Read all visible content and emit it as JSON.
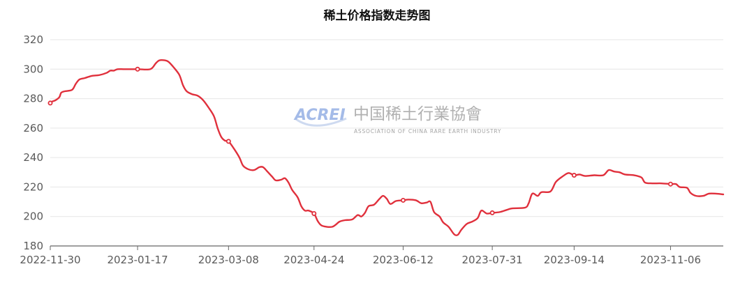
{
  "title": "稀土价格指数走势图",
  "watermark": {
    "logo_text": "ACREI",
    "name_cn": "中国稀土行業協會",
    "name_en": "ASSOCIATION OF CHINA RARE EARTH INDUSTRY"
  },
  "colors": {
    "line": "#e0303c",
    "grid": "#e6e6e6",
    "axis": "#666666",
    "tick_text": "#5a5a5a",
    "background": "#ffffff"
  },
  "chart_data": {
    "type": "line",
    "title": "稀土价格指数走势图",
    "xlabel": "",
    "ylabel": "",
    "grid": true,
    "ylim": [
      180,
      320
    ],
    "y_ticks": [
      180,
      200,
      220,
      240,
      260,
      280,
      300,
      320
    ],
    "x_ticks": [
      "2022-11-30",
      "2023-01-17",
      "2023-03-08",
      "2023-04-24",
      "2023-06-12",
      "2023-07-31",
      "2023-09-14",
      "2023-11-06"
    ],
    "x_range": [
      "2022-11-30",
      "2023-12-05"
    ],
    "series": [
      {
        "markers": [
          "2022-11-30",
          "2023-01-17",
          "2023-03-08",
          "2023-04-24",
          "2023-06-12",
          "2023-07-31",
          "2023-09-14",
          "2023-11-06"
        ],
        "points": [
          [
            "2022-11-30",
            277
          ],
          [
            "2022-12-01",
            278
          ],
          [
            "2022-12-03",
            279
          ],
          [
            "2022-12-05",
            281
          ],
          [
            "2022-12-06",
            284
          ],
          [
            "2022-12-08",
            285
          ],
          [
            "2022-12-12",
            286
          ],
          [
            "2022-12-14",
            290
          ],
          [
            "2022-12-16",
            293
          ],
          [
            "2022-12-19",
            294
          ],
          [
            "2022-12-23",
            295.5
          ],
          [
            "2022-12-27",
            296
          ],
          [
            "2022-12-31",
            297.5
          ],
          [
            "2023-01-02",
            299
          ],
          [
            "2023-01-04",
            299
          ],
          [
            "2023-01-06",
            300
          ],
          [
            "2023-01-10",
            300
          ],
          [
            "2023-01-17",
            300
          ],
          [
            "2023-01-24",
            300
          ],
          [
            "2023-01-27",
            304
          ],
          [
            "2023-01-29",
            306
          ],
          [
            "2023-02-01",
            306
          ],
          [
            "2023-02-03",
            305
          ],
          [
            "2023-02-06",
            301
          ],
          [
            "2023-02-09",
            296
          ],
          [
            "2023-02-11",
            289
          ],
          [
            "2023-02-13",
            285
          ],
          [
            "2023-02-16",
            283
          ],
          [
            "2023-02-19",
            282
          ],
          [
            "2023-02-22",
            279
          ],
          [
            "2023-02-25",
            274
          ],
          [
            "2023-02-28",
            268
          ],
          [
            "2023-03-02",
            260
          ],
          [
            "2023-03-04",
            254
          ],
          [
            "2023-03-06",
            251.5
          ],
          [
            "2023-03-08",
            251
          ],
          [
            "2023-03-11",
            246
          ],
          [
            "2023-03-14",
            240
          ],
          [
            "2023-03-16",
            234.5
          ],
          [
            "2023-03-19",
            232
          ],
          [
            "2023-03-22",
            231.5
          ],
          [
            "2023-03-25",
            233.5
          ],
          [
            "2023-03-27",
            233.5
          ],
          [
            "2023-03-29",
            231
          ],
          [
            "2023-04-01",
            227
          ],
          [
            "2023-04-03",
            224.5
          ],
          [
            "2023-04-06",
            225
          ],
          [
            "2023-04-08",
            226
          ],
          [
            "2023-04-10",
            223
          ],
          [
            "2023-04-12",
            218
          ],
          [
            "2023-04-15",
            213
          ],
          [
            "2023-04-17",
            207
          ],
          [
            "2023-04-19",
            204
          ],
          [
            "2023-04-21",
            204
          ],
          [
            "2023-04-24",
            202
          ],
          [
            "2023-04-26",
            197
          ],
          [
            "2023-04-28",
            194
          ],
          [
            "2023-05-01",
            193
          ],
          [
            "2023-05-04",
            193
          ],
          [
            "2023-05-06",
            194.5
          ],
          [
            "2023-05-08",
            196.5
          ],
          [
            "2023-05-11",
            197.5
          ],
          [
            "2023-05-15",
            198
          ],
          [
            "2023-05-18",
            201
          ],
          [
            "2023-05-20",
            200
          ],
          [
            "2023-05-22",
            202.5
          ],
          [
            "2023-05-24",
            207
          ],
          [
            "2023-05-27",
            208
          ],
          [
            "2023-05-30",
            212
          ],
          [
            "2023-06-01",
            214
          ],
          [
            "2023-06-03",
            212
          ],
          [
            "2023-06-05",
            208.5
          ],
          [
            "2023-06-08",
            210.5
          ],
          [
            "2023-06-12",
            211
          ],
          [
            "2023-06-15",
            211.5
          ],
          [
            "2023-06-19",
            211
          ],
          [
            "2023-06-22",
            209
          ],
          [
            "2023-06-25",
            209.5
          ],
          [
            "2023-06-27",
            210
          ],
          [
            "2023-06-29",
            203
          ],
          [
            "2023-07-02",
            200
          ],
          [
            "2023-07-04",
            196
          ],
          [
            "2023-07-07",
            193
          ],
          [
            "2023-07-10",
            188
          ],
          [
            "2023-07-12",
            187.5
          ],
          [
            "2023-07-14",
            191
          ],
          [
            "2023-07-17",
            195
          ],
          [
            "2023-07-20",
            196.5
          ],
          [
            "2023-07-23",
            199
          ],
          [
            "2023-07-25",
            204
          ],
          [
            "2023-07-28",
            202
          ],
          [
            "2023-07-31",
            202.5
          ],
          [
            "2023-08-04",
            203
          ],
          [
            "2023-08-08",
            204.5
          ],
          [
            "2023-08-11",
            205.5
          ],
          [
            "2023-08-18",
            206
          ],
          [
            "2023-08-20",
            209
          ],
          [
            "2023-08-22",
            215.5
          ],
          [
            "2023-08-25",
            214
          ],
          [
            "2023-08-27",
            216.5
          ],
          [
            "2023-09-01",
            217
          ],
          [
            "2023-09-04",
            223.5
          ],
          [
            "2023-09-08",
            227.5
          ],
          [
            "2023-09-11",
            229.5
          ],
          [
            "2023-09-14",
            228
          ],
          [
            "2023-09-17",
            228.5
          ],
          [
            "2023-09-20",
            227.5
          ],
          [
            "2023-09-25",
            228
          ],
          [
            "2023-09-30",
            228
          ],
          [
            "2023-10-03",
            231.5
          ],
          [
            "2023-10-06",
            230.5
          ],
          [
            "2023-10-09",
            230
          ],
          [
            "2023-10-12",
            228.5
          ],
          [
            "2023-10-17",
            228
          ],
          [
            "2023-10-21",
            226.5
          ],
          [
            "2023-10-23",
            223
          ],
          [
            "2023-10-27",
            222.5
          ],
          [
            "2023-11-01",
            222.5
          ],
          [
            "2023-11-06",
            222
          ],
          [
            "2023-11-09",
            222
          ],
          [
            "2023-11-11",
            220
          ],
          [
            "2023-11-15",
            219.5
          ],
          [
            "2023-11-17",
            216
          ],
          [
            "2023-11-20",
            214
          ],
          [
            "2023-11-24",
            214
          ],
          [
            "2023-11-27",
            215.5
          ],
          [
            "2023-12-01",
            215.5
          ],
          [
            "2023-12-05",
            215
          ]
        ]
      }
    ]
  }
}
